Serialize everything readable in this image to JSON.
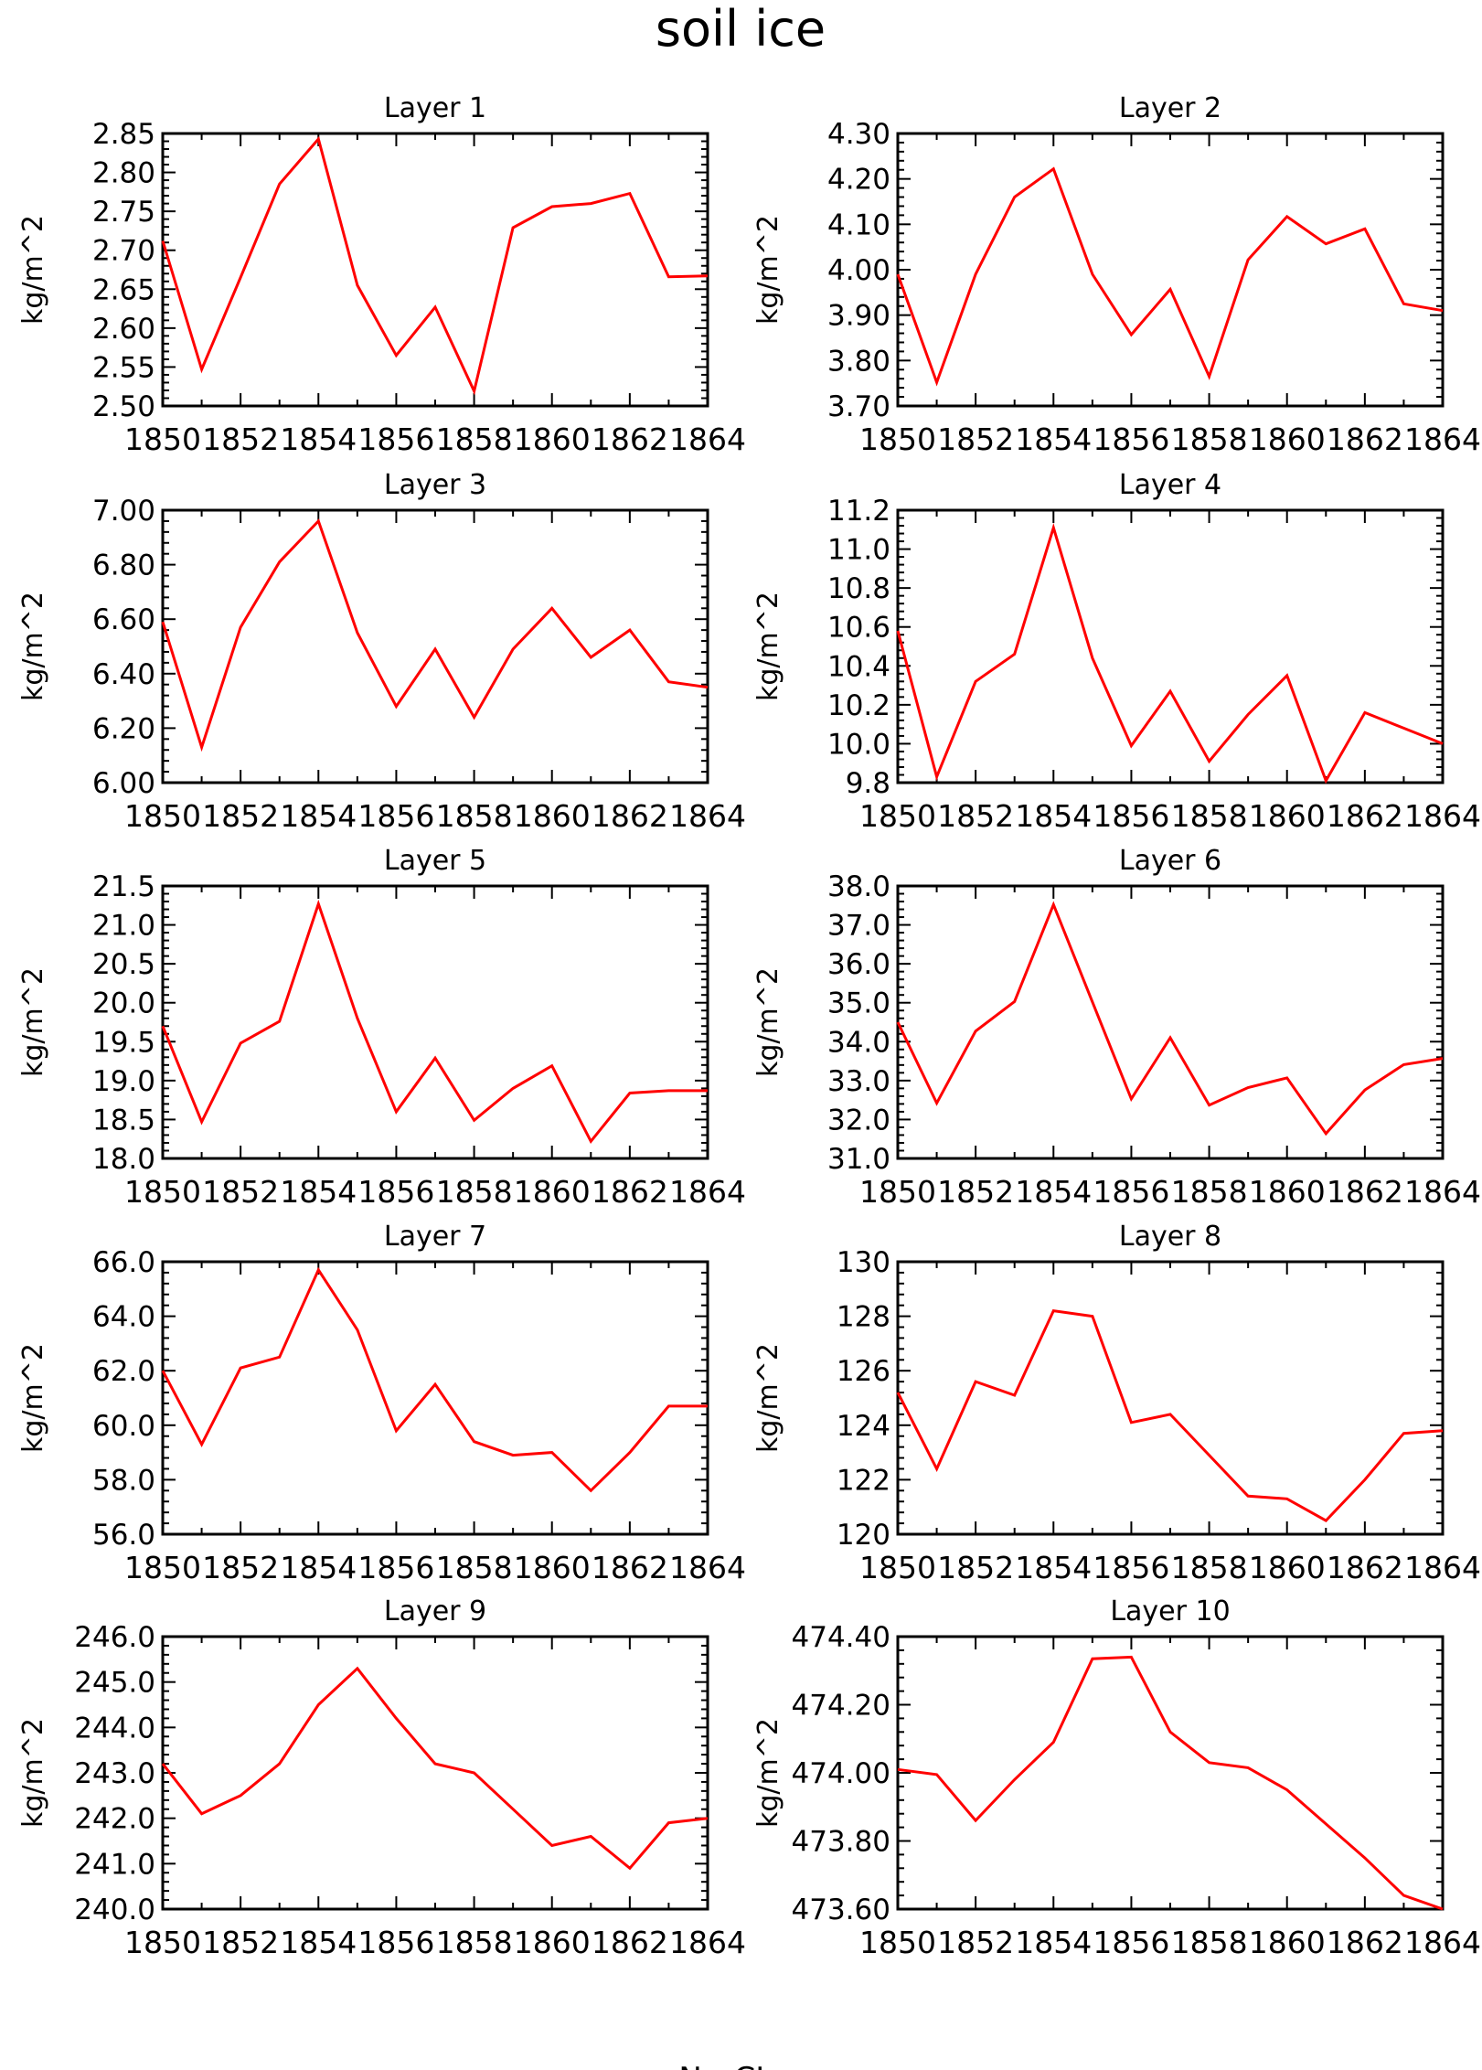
{
  "figure": {
    "title": "soil ice",
    "footer": "NorCL..."
  },
  "style": {
    "line_color": "#ff0000",
    "axis_color": "#000000"
  },
  "chart_data": [
    {
      "type": "line",
      "title": "Layer 1",
      "ylabel": "kg/m^2",
      "x": [
        1850,
        1851,
        1852,
        1853,
        1854,
        1855,
        1856,
        1857,
        1858,
        1859,
        1860,
        1861,
        1862,
        1863,
        1864
      ],
      "xticks": [
        "1850",
        "1852",
        "1854",
        "1856",
        "1858",
        "1860",
        "1862",
        "1864"
      ],
      "ylim": [
        2.5,
        2.85
      ],
      "yticks": [
        "2.50",
        "2.55",
        "2.60",
        "2.65",
        "2.70",
        "2.75",
        "2.80",
        "2.85"
      ],
      "values": [
        2.712,
        2.547,
        2.665,
        2.785,
        2.843,
        2.655,
        2.565,
        2.627,
        2.519,
        2.729,
        2.756,
        2.76,
        2.773,
        2.666,
        2.667
      ]
    },
    {
      "type": "line",
      "title": "Layer 2",
      "ylabel": "kg/m^2",
      "x": [
        1850,
        1851,
        1852,
        1853,
        1854,
        1855,
        1856,
        1857,
        1858,
        1859,
        1860,
        1861,
        1862,
        1863,
        1864
      ],
      "xticks": [
        "1850",
        "1852",
        "1854",
        "1856",
        "1858",
        "1860",
        "1862",
        "1864"
      ],
      "ylim": [
        3.7,
        4.3
      ],
      "yticks": [
        "3.70",
        "3.80",
        "3.90",
        "4.00",
        "4.10",
        "4.20",
        "4.30"
      ],
      "values": [
        3.99,
        3.752,
        3.99,
        4.16,
        4.222,
        3.99,
        3.857,
        3.957,
        3.765,
        4.022,
        4.117,
        4.057,
        4.09,
        3.925,
        3.91
      ]
    },
    {
      "type": "line",
      "title": "Layer 3",
      "ylabel": "kg/m^2",
      "x": [
        1850,
        1851,
        1852,
        1853,
        1854,
        1855,
        1856,
        1857,
        1858,
        1859,
        1860,
        1861,
        1862,
        1863,
        1864
      ],
      "xticks": [
        "1850",
        "1852",
        "1854",
        "1856",
        "1858",
        "1860",
        "1862",
        "1864"
      ],
      "ylim": [
        6.0,
        7.0
      ],
      "yticks": [
        "6.00",
        "6.20",
        "6.40",
        "6.60",
        "6.80",
        "7.00"
      ],
      "values": [
        6.59,
        6.13,
        6.57,
        6.81,
        6.96,
        6.55,
        6.28,
        6.49,
        6.24,
        6.49,
        6.64,
        6.46,
        6.56,
        6.37,
        6.35
      ]
    },
    {
      "type": "line",
      "title": "Layer 4",
      "ylabel": "kg/m^2",
      "x": [
        1850,
        1851,
        1852,
        1853,
        1854,
        1855,
        1856,
        1857,
        1858,
        1859,
        1860,
        1861,
        1862,
        1863,
        1864
      ],
      "xticks": [
        "1850",
        "1852",
        "1854",
        "1856",
        "1858",
        "1860",
        "1862",
        "1864"
      ],
      "ylim": [
        9.8,
        11.2
      ],
      "yticks": [
        "9.8",
        "10.0",
        "10.2",
        "10.4",
        "10.6",
        "10.8",
        "11.0",
        "11.2"
      ],
      "values": [
        10.58,
        9.83,
        10.32,
        10.46,
        11.11,
        10.44,
        9.99,
        10.27,
        9.91,
        10.15,
        10.35,
        9.81,
        10.16,
        10.08,
        10.0
      ]
    },
    {
      "type": "line",
      "title": "Layer 5",
      "ylabel": "kg/m^2",
      "x": [
        1850,
        1851,
        1852,
        1853,
        1854,
        1855,
        1856,
        1857,
        1858,
        1859,
        1860,
        1861,
        1862,
        1863,
        1864
      ],
      "xticks": [
        "1850",
        "1852",
        "1854",
        "1856",
        "1858",
        "1860",
        "1862",
        "1864"
      ],
      "ylim": [
        18.0,
        21.5
      ],
      "yticks": [
        "18.0",
        "18.5",
        "19.0",
        "19.5",
        "20.0",
        "20.5",
        "21.0",
        "21.5"
      ],
      "values": [
        19.7,
        18.47,
        19.48,
        19.76,
        21.27,
        19.8,
        18.6,
        19.29,
        18.49,
        18.9,
        19.19,
        18.22,
        18.84,
        18.87,
        18.87
      ]
    },
    {
      "type": "line",
      "title": "Layer 6",
      "ylabel": "kg/m^2",
      "x": [
        1850,
        1851,
        1852,
        1853,
        1854,
        1855,
        1856,
        1857,
        1858,
        1859,
        1860,
        1861,
        1862,
        1863,
        1864
      ],
      "xticks": [
        "1850",
        "1852",
        "1854",
        "1856",
        "1858",
        "1860",
        "1862",
        "1864"
      ],
      "ylim": [
        31.0,
        38.0
      ],
      "yticks": [
        "31.0",
        "32.0",
        "33.0",
        "34.0",
        "35.0",
        "36.0",
        "37.0",
        "38.0"
      ],
      "values": [
        34.5,
        32.42,
        34.27,
        35.03,
        37.52,
        35.02,
        32.53,
        34.1,
        32.37,
        32.82,
        33.07,
        31.64,
        32.76,
        33.41,
        33.57
      ]
    },
    {
      "type": "line",
      "title": "Layer 7",
      "ylabel": "kg/m^2",
      "x": [
        1850,
        1851,
        1852,
        1853,
        1854,
        1855,
        1856,
        1857,
        1858,
        1859,
        1860,
        1861,
        1862,
        1863,
        1864
      ],
      "xticks": [
        "1850",
        "1852",
        "1854",
        "1856",
        "1858",
        "1860",
        "1862",
        "1864"
      ],
      "ylim": [
        56.0,
        66.0
      ],
      "yticks": [
        "56.0",
        "58.0",
        "60.0",
        "62.0",
        "64.0",
        "66.0"
      ],
      "values": [
        62.0,
        59.3,
        62.1,
        62.5,
        65.7,
        63.5,
        59.8,
        61.5,
        59.4,
        58.9,
        59.0,
        57.6,
        59.0,
        60.7,
        60.7
      ]
    },
    {
      "type": "line",
      "title": "Layer 8",
      "ylabel": "kg/m^2",
      "x": [
        1850,
        1851,
        1852,
        1853,
        1854,
        1855,
        1856,
        1857,
        1858,
        1859,
        1860,
        1861,
        1862,
        1863,
        1864
      ],
      "xticks": [
        "1850",
        "1852",
        "1854",
        "1856",
        "1858",
        "1860",
        "1862",
        "1864"
      ],
      "ylim": [
        120,
        130
      ],
      "yticks": [
        "120",
        "122",
        "124",
        "126",
        "128",
        "130"
      ],
      "values": [
        125.2,
        122.4,
        125.6,
        125.1,
        128.2,
        128.0,
        124.1,
        124.4,
        122.9,
        121.4,
        121.3,
        120.5,
        122.0,
        123.7,
        123.8
      ]
    },
    {
      "type": "line",
      "title": "Layer 9",
      "ylabel": "kg/m^2",
      "x": [
        1850,
        1851,
        1852,
        1853,
        1854,
        1855,
        1856,
        1857,
        1858,
        1859,
        1860,
        1861,
        1862,
        1863,
        1864
      ],
      "xticks": [
        "1850",
        "1852",
        "1854",
        "1856",
        "1858",
        "1860",
        "1862",
        "1864"
      ],
      "ylim": [
        240.0,
        246.0
      ],
      "yticks": [
        "240.0",
        "241.0",
        "242.0",
        "243.0",
        "244.0",
        "245.0",
        "246.0"
      ],
      "values": [
        243.2,
        242.1,
        242.5,
        243.2,
        244.5,
        245.3,
        244.2,
        243.2,
        243.0,
        242.2,
        241.4,
        241.6,
        240.9,
        241.9,
        242.0
      ]
    },
    {
      "type": "line",
      "title": "Layer 10",
      "ylabel": "kg/m^2",
      "x": [
        1850,
        1851,
        1852,
        1853,
        1854,
        1855,
        1856,
        1857,
        1858,
        1859,
        1860,
        1861,
        1862,
        1863,
        1864
      ],
      "xticks": [
        "1850",
        "1852",
        "1854",
        "1856",
        "1858",
        "1860",
        "1862",
        "1864"
      ],
      "ylim": [
        473.6,
        474.4
      ],
      "yticks": [
        "473.60",
        "473.80",
        "474.00",
        "474.20",
        "474.40"
      ],
      "values": [
        474.01,
        473.995,
        473.86,
        473.98,
        474.09,
        474.335,
        474.34,
        474.12,
        474.03,
        474.015,
        473.95,
        473.85,
        473.75,
        473.64,
        473.6
      ]
    }
  ]
}
